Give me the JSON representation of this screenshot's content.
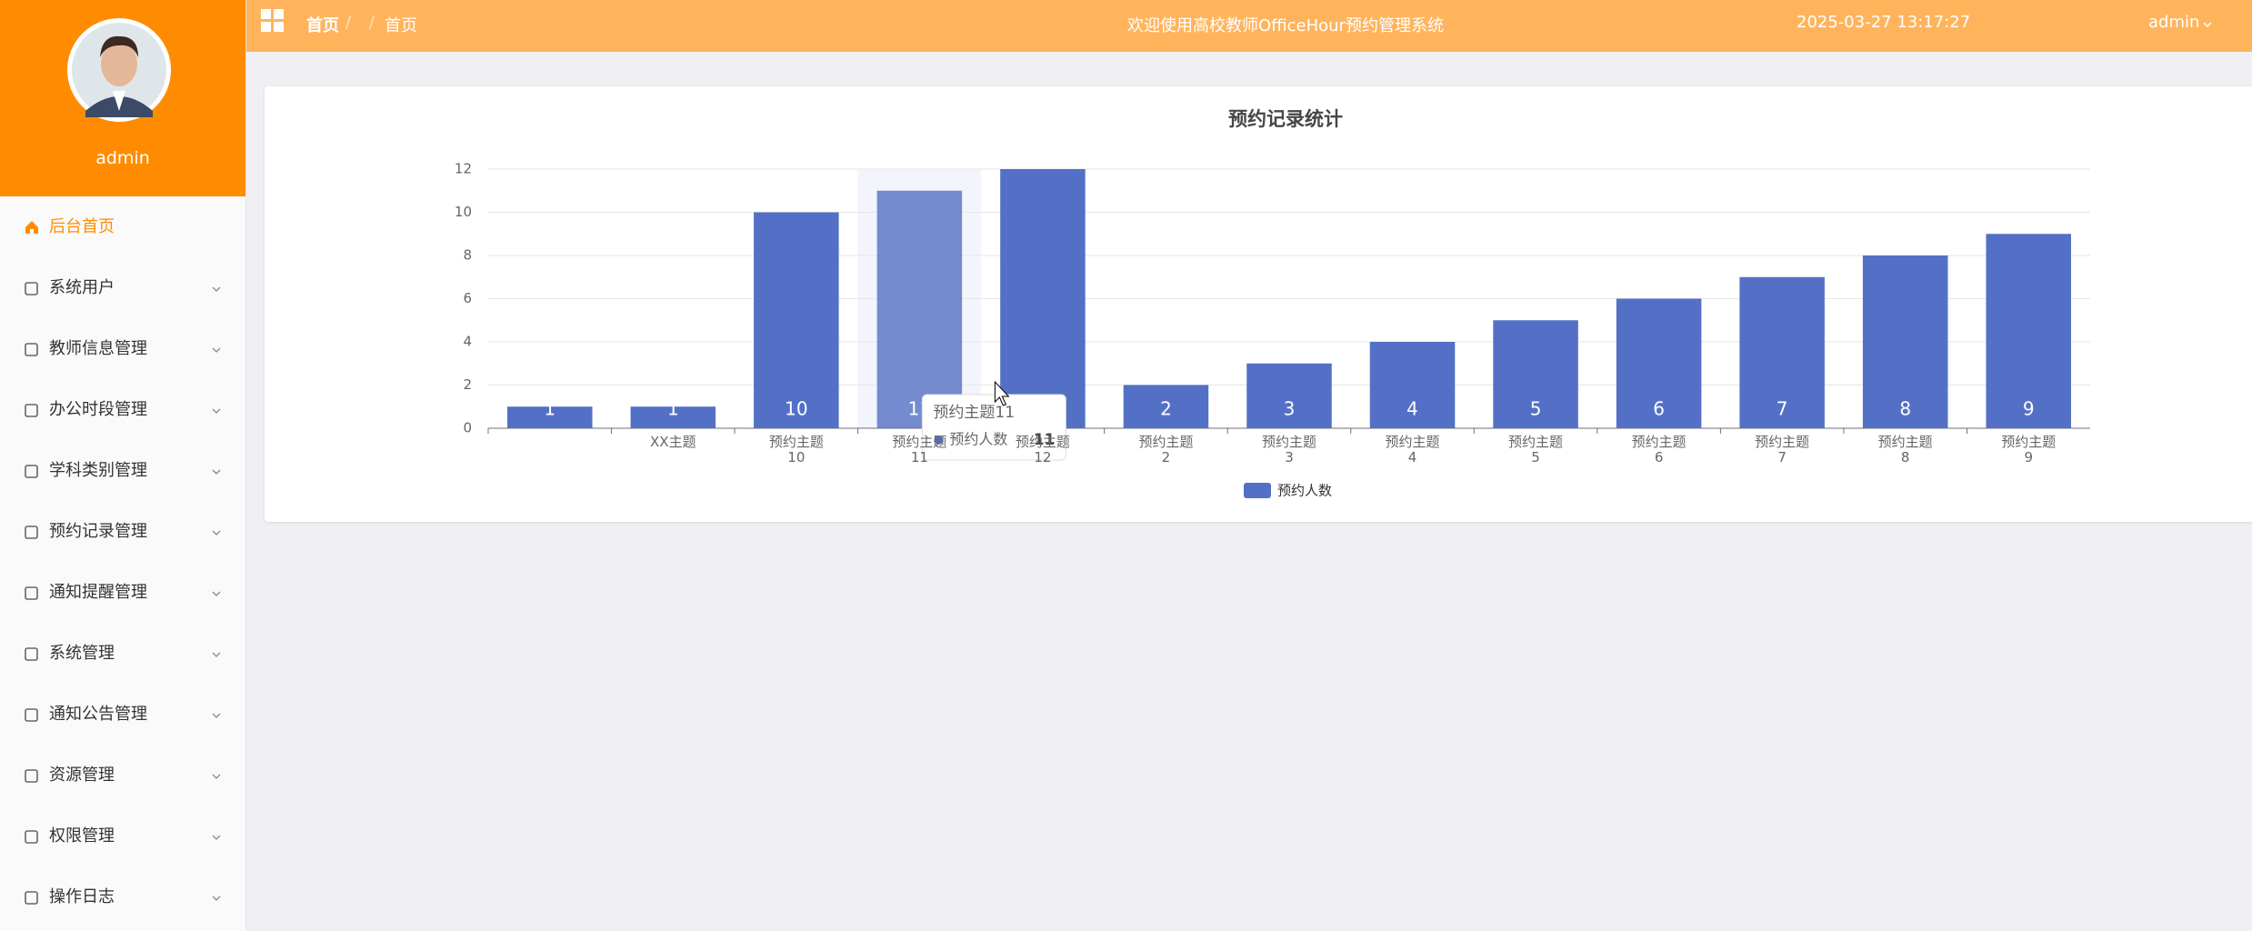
{
  "sidebar": {
    "username": "admin",
    "menu": [
      "后台首页",
      "系统用户",
      "教师信息管理",
      "办公时段管理",
      "学科类别管理",
      "预约记录管理",
      "通知提醒管理",
      "系统管理",
      "通知公告管理",
      "资源管理",
      "权限管理",
      "操作日志"
    ]
  },
  "header": {
    "breadcrumb": [
      "首页",
      "首页"
    ],
    "title": "欢迎使用高校教师OfficeHour预约管理系统",
    "datetime": "2025-03-27 13:17:27",
    "user": "admin"
  },
  "chart_data": {
    "type": "bar",
    "title": "预约记录统计",
    "categories": [
      null,
      "XX主题",
      "预约主题\n10",
      "预约主题\n11",
      "预约主题\n12",
      "预约主题\n2",
      "预约主题\n3",
      "预约主题\n4",
      "预约主题\n5",
      "预约主题\n6",
      "预约主题\n7",
      "预约主题\n8",
      "预约主题\n9"
    ],
    "series": [
      {
        "name": "预约人数",
        "color": "#5470c6",
        "values": [
          1,
          1,
          10,
          11,
          12,
          2,
          3,
          4,
          5,
          6,
          7,
          8,
          9
        ]
      }
    ],
    "ylim": [
      0,
      12
    ],
    "yticks": [
      0,
      2,
      4,
      6,
      8,
      10,
      12
    ],
    "grid": true,
    "legend": "bottom",
    "tooltip": {
      "category": "预约主题11",
      "series": "预约人数",
      "value": 11
    }
  }
}
